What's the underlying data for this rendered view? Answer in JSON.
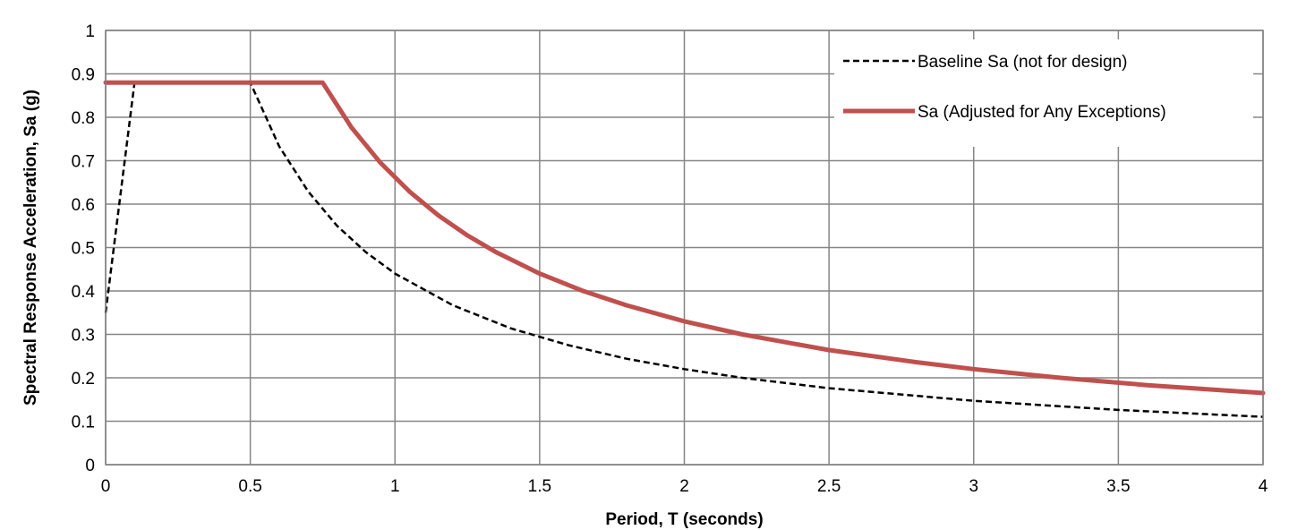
{
  "chart_data": {
    "type": "line",
    "title": "",
    "xlabel": "Period, T (seconds)",
    "ylabel": "Spectral Response Acceleration, Sa (g)",
    "xlim": [
      0,
      4
    ],
    "ylim": [
      0,
      1
    ],
    "x_ticks": [
      0,
      0.5,
      1,
      1.5,
      2,
      2.5,
      3,
      3.5,
      4
    ],
    "x_tick_labels": [
      "0",
      "0.5",
      "1",
      "1.5",
      "2",
      "2.5",
      "3",
      "3.5",
      "4"
    ],
    "y_ticks": [
      0,
      0.1,
      0.2,
      0.3,
      0.4,
      0.5,
      0.6,
      0.7,
      0.8,
      0.9,
      1
    ],
    "y_tick_labels": [
      "0",
      "0.1",
      "0.2",
      "0.3",
      "0.4",
      "0.5",
      "0.6",
      "0.7",
      "0.8",
      "0.9",
      "1"
    ],
    "grid": true,
    "legend_position": "top-right",
    "series": [
      {
        "name": "Baseline Sa (not for design)",
        "color": "#000000",
        "style": "dashed",
        "x": [
          0,
          0.1,
          0.5,
          0.6,
          0.7,
          0.8,
          0.9,
          1.0,
          1.2,
          1.4,
          1.6,
          1.8,
          2.0,
          2.2,
          2.5,
          3.0,
          3.5,
          4.0
        ],
        "y": [
          0.35,
          0.88,
          0.88,
          0.733,
          0.629,
          0.55,
          0.489,
          0.44,
          0.367,
          0.314,
          0.275,
          0.244,
          0.22,
          0.2,
          0.176,
          0.147,
          0.126,
          0.11
        ]
      },
      {
        "name": "Sa (Adjusted for Any Exceptions)",
        "color": "#C0504D",
        "style": "solid",
        "x": [
          0,
          0.75,
          0.85,
          0.95,
          1.05,
          1.15,
          1.25,
          1.35,
          1.5,
          1.65,
          1.8,
          2.0,
          2.2,
          2.5,
          2.8,
          3.0,
          3.3,
          3.6,
          4.0
        ],
        "y": [
          0.88,
          0.88,
          0.776,
          0.695,
          0.629,
          0.574,
          0.528,
          0.489,
          0.44,
          0.4,
          0.367,
          0.33,
          0.3,
          0.264,
          0.236,
          0.22,
          0.2,
          0.183,
          0.165
        ]
      }
    ]
  }
}
